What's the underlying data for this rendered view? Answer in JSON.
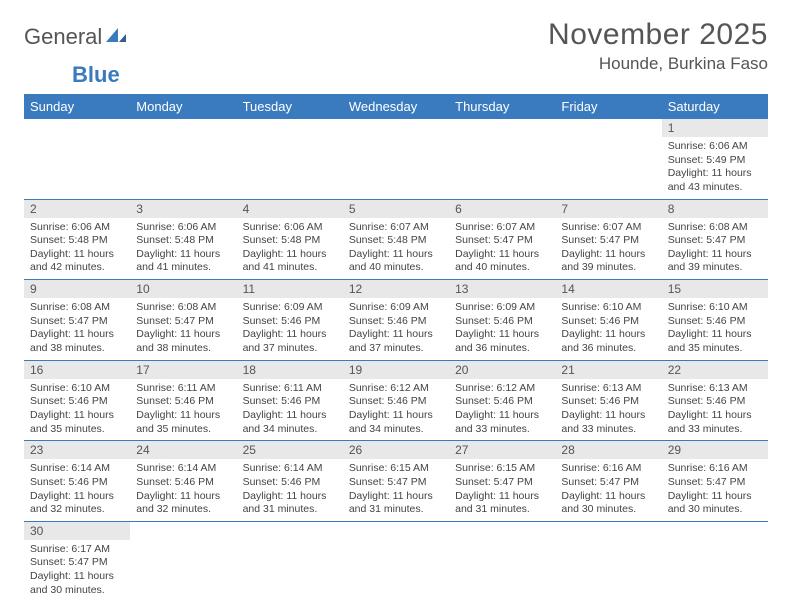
{
  "brand": {
    "part1": "General",
    "part2": "Blue"
  },
  "title": "November 2025",
  "location": "Hounde, Burkina Faso",
  "header_bg": "#3a7bbf",
  "daynum_bg": "#e8e8e8",
  "row_border": "#3a7bbf",
  "weekdays": [
    "Sunday",
    "Monday",
    "Tuesday",
    "Wednesday",
    "Thursday",
    "Friday",
    "Saturday"
  ],
  "first_weekday_index": 6,
  "days": [
    {
      "n": 1,
      "sunrise": "6:06 AM",
      "sunset": "5:49 PM",
      "daylight": "11 hours and 43 minutes."
    },
    {
      "n": 2,
      "sunrise": "6:06 AM",
      "sunset": "5:48 PM",
      "daylight": "11 hours and 42 minutes."
    },
    {
      "n": 3,
      "sunrise": "6:06 AM",
      "sunset": "5:48 PM",
      "daylight": "11 hours and 41 minutes."
    },
    {
      "n": 4,
      "sunrise": "6:06 AM",
      "sunset": "5:48 PM",
      "daylight": "11 hours and 41 minutes."
    },
    {
      "n": 5,
      "sunrise": "6:07 AM",
      "sunset": "5:48 PM",
      "daylight": "11 hours and 40 minutes."
    },
    {
      "n": 6,
      "sunrise": "6:07 AM",
      "sunset": "5:47 PM",
      "daylight": "11 hours and 40 minutes."
    },
    {
      "n": 7,
      "sunrise": "6:07 AM",
      "sunset": "5:47 PM",
      "daylight": "11 hours and 39 minutes."
    },
    {
      "n": 8,
      "sunrise": "6:08 AM",
      "sunset": "5:47 PM",
      "daylight": "11 hours and 39 minutes."
    },
    {
      "n": 9,
      "sunrise": "6:08 AM",
      "sunset": "5:47 PM",
      "daylight": "11 hours and 38 minutes."
    },
    {
      "n": 10,
      "sunrise": "6:08 AM",
      "sunset": "5:47 PM",
      "daylight": "11 hours and 38 minutes."
    },
    {
      "n": 11,
      "sunrise": "6:09 AM",
      "sunset": "5:46 PM",
      "daylight": "11 hours and 37 minutes."
    },
    {
      "n": 12,
      "sunrise": "6:09 AM",
      "sunset": "5:46 PM",
      "daylight": "11 hours and 37 minutes."
    },
    {
      "n": 13,
      "sunrise": "6:09 AM",
      "sunset": "5:46 PM",
      "daylight": "11 hours and 36 minutes."
    },
    {
      "n": 14,
      "sunrise": "6:10 AM",
      "sunset": "5:46 PM",
      "daylight": "11 hours and 36 minutes."
    },
    {
      "n": 15,
      "sunrise": "6:10 AM",
      "sunset": "5:46 PM",
      "daylight": "11 hours and 35 minutes."
    },
    {
      "n": 16,
      "sunrise": "6:10 AM",
      "sunset": "5:46 PM",
      "daylight": "11 hours and 35 minutes."
    },
    {
      "n": 17,
      "sunrise": "6:11 AM",
      "sunset": "5:46 PM",
      "daylight": "11 hours and 35 minutes."
    },
    {
      "n": 18,
      "sunrise": "6:11 AM",
      "sunset": "5:46 PM",
      "daylight": "11 hours and 34 minutes."
    },
    {
      "n": 19,
      "sunrise": "6:12 AM",
      "sunset": "5:46 PM",
      "daylight": "11 hours and 34 minutes."
    },
    {
      "n": 20,
      "sunrise": "6:12 AM",
      "sunset": "5:46 PM",
      "daylight": "11 hours and 33 minutes."
    },
    {
      "n": 21,
      "sunrise": "6:13 AM",
      "sunset": "5:46 PM",
      "daylight": "11 hours and 33 minutes."
    },
    {
      "n": 22,
      "sunrise": "6:13 AM",
      "sunset": "5:46 PM",
      "daylight": "11 hours and 33 minutes."
    },
    {
      "n": 23,
      "sunrise": "6:14 AM",
      "sunset": "5:46 PM",
      "daylight": "11 hours and 32 minutes."
    },
    {
      "n": 24,
      "sunrise": "6:14 AM",
      "sunset": "5:46 PM",
      "daylight": "11 hours and 32 minutes."
    },
    {
      "n": 25,
      "sunrise": "6:14 AM",
      "sunset": "5:46 PM",
      "daylight": "11 hours and 31 minutes."
    },
    {
      "n": 26,
      "sunrise": "6:15 AM",
      "sunset": "5:47 PM",
      "daylight": "11 hours and 31 minutes."
    },
    {
      "n": 27,
      "sunrise": "6:15 AM",
      "sunset": "5:47 PM",
      "daylight": "11 hours and 31 minutes."
    },
    {
      "n": 28,
      "sunrise": "6:16 AM",
      "sunset": "5:47 PM",
      "daylight": "11 hours and 30 minutes."
    },
    {
      "n": 29,
      "sunrise": "6:16 AM",
      "sunset": "5:47 PM",
      "daylight": "11 hours and 30 minutes."
    },
    {
      "n": 30,
      "sunrise": "6:17 AM",
      "sunset": "5:47 PM",
      "daylight": "11 hours and 30 minutes."
    }
  ],
  "labels": {
    "sunrise": "Sunrise:",
    "sunset": "Sunset:",
    "daylight": "Daylight:"
  }
}
